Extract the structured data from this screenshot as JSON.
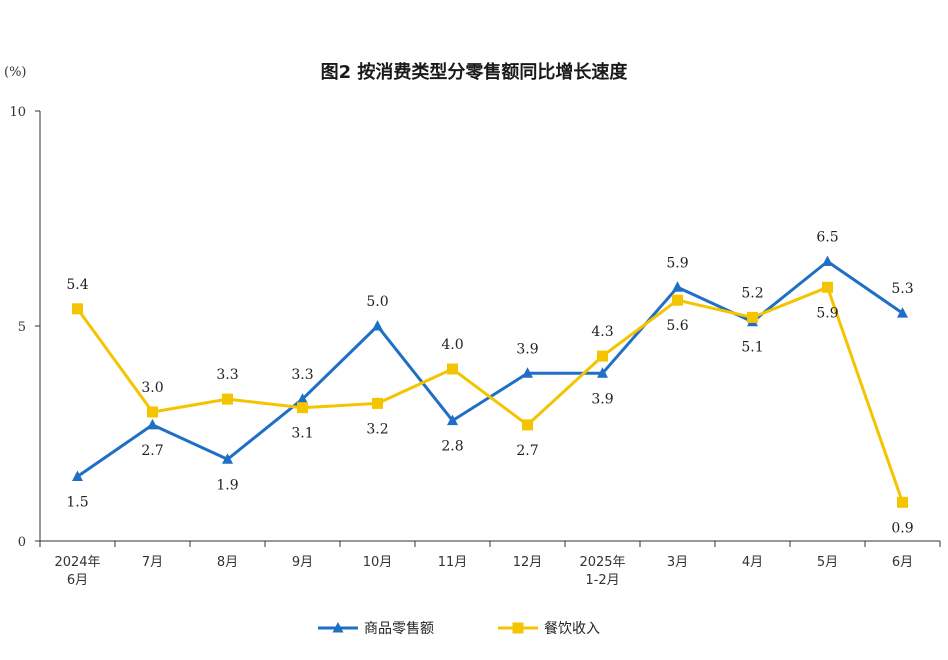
{
  "chart_data": {
    "type": "line",
    "title": "图2  按消费类型分零售额同比增长速度",
    "unit_label": "(%)",
    "categories": [
      "2024年\n6月",
      "7月",
      "8月",
      "9月",
      "10月",
      "11月",
      "12月",
      "2025年\n1-2月",
      "3月",
      "4月",
      "5月",
      "6月"
    ],
    "ylim": [
      0,
      10
    ],
    "yticks": [
      "0",
      "5",
      "10"
    ],
    "series": [
      {
        "name": "商品零售额",
        "color": "#1f6fc6",
        "marker": "triangle",
        "values": [
          1.5,
          2.7,
          1.9,
          3.3,
          5.0,
          2.8,
          3.9,
          3.9,
          5.9,
          5.1,
          6.5,
          5.3
        ],
        "labels": [
          "1.5",
          "2.7",
          "1.9",
          "3.3",
          "5.0",
          "2.8",
          "3.9",
          "3.9",
          "5.9",
          "5.1",
          "6.5",
          "5.3"
        ]
      },
      {
        "name": "餐饮收入",
        "color": "#f5c400",
        "marker": "square",
        "values": [
          5.4,
          3.0,
          3.3,
          3.1,
          3.2,
          4.0,
          2.7,
          4.3,
          5.6,
          5.2,
          5.9,
          0.9
        ],
        "labels": [
          "5.4",
          "3.0",
          "3.3",
          "3.1",
          "3.2",
          "4.0",
          "2.7",
          "4.3",
          "5.6",
          "5.2",
          "5.9",
          "0.9"
        ]
      }
    ],
    "grid": false,
    "legend_position": "bottom"
  }
}
